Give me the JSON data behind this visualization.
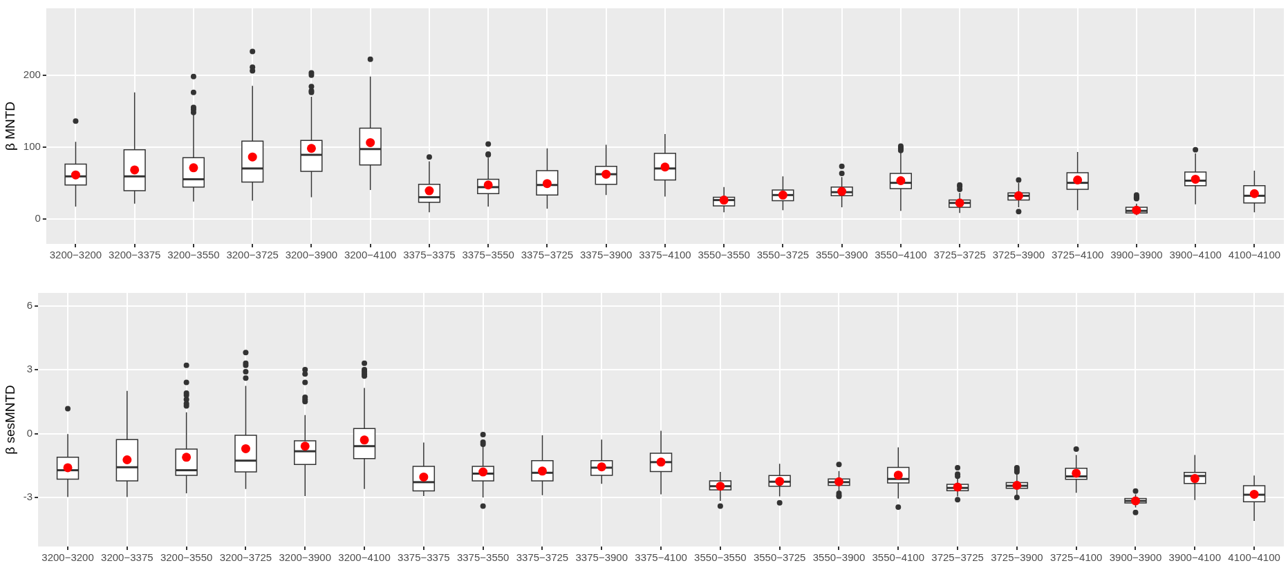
{
  "chart_data": [
    {
      "type": "box",
      "ylabel": "β MNTD",
      "categories": [
        "3200−3200",
        "3200−3375",
        "3200−3550",
        "3200−3725",
        "3200−3900",
        "3200−4100",
        "3375−3375",
        "3375−3550",
        "3375−3725",
        "3375−3900",
        "3375−4100",
        "3550−3550",
        "3550−3725",
        "3550−3900",
        "3550−4100",
        "3725−3725",
        "3725−3900",
        "3725−4100",
        "3900−3900",
        "3900−4100",
        "4100−4100"
      ],
      "ylim": [
        -35,
        293
      ],
      "yticks": [
        0,
        100,
        200
      ],
      "grid": true,
      "boxes": [
        {
          "low": 17,
          "q1": 47,
          "median": 59,
          "q3": 76,
          "high": 107,
          "mean": 61,
          "outliers": [
            136
          ]
        },
        {
          "low": 21,
          "q1": 39,
          "median": 59,
          "q3": 96,
          "high": 176,
          "mean": 68
        },
        {
          "low": 24,
          "q1": 44,
          "median": 55,
          "q3": 85,
          "high": 145,
          "mean": 71,
          "outliers": [
            148,
            152,
            155,
            176,
            198
          ]
        },
        {
          "low": 25,
          "q1": 51,
          "median": 70,
          "q3": 108,
          "high": 185,
          "mean": 86,
          "outliers": [
            206,
            211,
            233
          ]
        },
        {
          "low": 30,
          "q1": 66,
          "median": 89,
          "q3": 109,
          "high": 170,
          "mean": 98,
          "outliers": [
            176,
            178,
            184,
            200,
            203
          ]
        },
        {
          "low": 40,
          "q1": 75,
          "median": 97,
          "q3": 126,
          "high": 198,
          "mean": 106,
          "outliers": [
            222
          ]
        },
        {
          "low": 9,
          "q1": 23,
          "median": 30,
          "q3": 48,
          "high": 80,
          "mean": 39,
          "outliers": [
            86
          ]
        },
        {
          "low": 17,
          "q1": 35,
          "median": 44,
          "q3": 55,
          "high": 85,
          "mean": 47,
          "outliers": [
            89,
            90,
            104
          ]
        },
        {
          "low": 14,
          "q1": 33,
          "median": 47,
          "q3": 67,
          "high": 98,
          "mean": 49
        },
        {
          "low": 33,
          "q1": 48,
          "median": 62,
          "q3": 73,
          "high": 103,
          "mean": 62
        },
        {
          "low": 31,
          "q1": 54,
          "median": 70,
          "q3": 91,
          "high": 118,
          "mean": 72
        },
        {
          "low": 9,
          "q1": 18,
          "median": 26,
          "q3": 30,
          "high": 44,
          "mean": 26
        },
        {
          "low": 12,
          "q1": 25,
          "median": 33,
          "q3": 40,
          "high": 59,
          "mean": 33
        },
        {
          "low": 16,
          "q1": 32,
          "median": 37,
          "q3": 44,
          "high": 58,
          "mean": 38,
          "outliers": [
            63,
            73
          ]
        },
        {
          "low": 11,
          "q1": 42,
          "median": 50,
          "q3": 63,
          "high": 92,
          "mean": 53,
          "outliers": [
            95,
            97,
            99,
            101
          ]
        },
        {
          "low": 8,
          "q1": 16,
          "median": 22,
          "q3": 26,
          "high": 36,
          "mean": 22,
          "outliers": [
            41,
            45,
            47
          ]
        },
        {
          "low": 16,
          "q1": 26,
          "median": 32,
          "q3": 36,
          "high": 50,
          "mean": 32,
          "outliers": [
            10,
            54
          ]
        },
        {
          "low": 12,
          "q1": 41,
          "median": 50,
          "q3": 64,
          "high": 93,
          "mean": 54
        },
        {
          "low": 5,
          "q1": 8,
          "median": 11,
          "q3": 16,
          "high": 21,
          "mean": 12,
          "outliers": [
            28,
            29,
            30,
            31,
            33
          ]
        },
        {
          "low": 20,
          "q1": 46,
          "median": 53,
          "q3": 65,
          "high": 91,
          "mean": 55,
          "outliers": [
            96
          ]
        },
        {
          "low": 9,
          "q1": 22,
          "median": 32,
          "q3": 46,
          "high": 67,
          "mean": 35
        }
      ]
    },
    {
      "type": "box",
      "ylabel": "β sesMNTD",
      "categories": [
        "3200−3200",
        "3200−3375",
        "3200−3550",
        "3200−3725",
        "3200−3900",
        "3200−4100",
        "3375−3375",
        "3375−3550",
        "3375−3725",
        "3375−3900",
        "3375−4100",
        "3550−3550",
        "3550−3725",
        "3550−3900",
        "3550−4100",
        "3725−3725",
        "3725−3900",
        "3725−4100",
        "3900−3900",
        "3900−4100",
        "4100−4100"
      ],
      "ylim": [
        -5.3,
        6.6
      ],
      "yticks": [
        -3,
        0,
        3,
        6
      ],
      "grid": true,
      "boxes": [
        {
          "low": -2.97,
          "q1": -2.14,
          "median": -1.72,
          "q3": -1.11,
          "high": -0.02,
          "mean": -1.6,
          "outliers": [
            1.17
          ]
        },
        {
          "low": -2.97,
          "q1": -2.22,
          "median": -1.58,
          "q3": -0.28,
          "high": 2.0,
          "mean": -1.23
        },
        {
          "low": -2.8,
          "q1": -1.96,
          "median": -1.72,
          "q3": -0.73,
          "high": 1.0,
          "mean": -1.11,
          "outliers": [
            1.3,
            1.4,
            1.6,
            1.8,
            1.9,
            2.4,
            3.2
          ]
        },
        {
          "low": -2.6,
          "q1": -1.8,
          "median": -1.27,
          "q3": -0.08,
          "high": 2.24,
          "mean": -0.71,
          "outliers": [
            2.6,
            2.9,
            3.2,
            3.3,
            3.8
          ]
        },
        {
          "low": -2.93,
          "q1": -1.45,
          "median": -0.83,
          "q3": -0.34,
          "high": 0.87,
          "mean": -0.59,
          "outliers": [
            1.5,
            1.6,
            1.7,
            2.4,
            2.8,
            3.0
          ]
        },
        {
          "low": -2.6,
          "q1": -1.17,
          "median": -0.59,
          "q3": 0.24,
          "high": 2.14,
          "mean": -0.3,
          "outliers": [
            2.7,
            2.8,
            2.9,
            3.0,
            3.3
          ]
        },
        {
          "low": -2.93,
          "q1": -2.69,
          "median": -2.28,
          "q3": -1.54,
          "high": -0.42,
          "mean": -2.04
        },
        {
          "low": -3.0,
          "q1": -2.22,
          "median": -1.88,
          "q3": -1.54,
          "high": -0.6,
          "mean": -1.8,
          "outliers": [
            -0.05,
            -0.4,
            -0.5,
            -3.4
          ]
        },
        {
          "low": -2.89,
          "q1": -2.22,
          "median": -1.84,
          "q3": -1.27,
          "high": -0.08,
          "mean": -1.76
        },
        {
          "low": -2.36,
          "q1": -1.96,
          "median": -1.6,
          "q3": -1.27,
          "high": -0.28,
          "mean": -1.56
        },
        {
          "low": -2.85,
          "q1": -1.78,
          "median": -1.34,
          "q3": -0.92,
          "high": 0.13,
          "mean": -1.34
        },
        {
          "low": -3.16,
          "q1": -2.64,
          "median": -2.47,
          "q3": -2.22,
          "high": -1.8,
          "mean": -2.47,
          "outliers": [
            -3.4
          ]
        },
        {
          "low": -2.95,
          "q1": -2.47,
          "median": -2.26,
          "q3": -1.97,
          "high": -1.42,
          "mean": -2.24,
          "outliers": [
            -3.25
          ]
        },
        {
          "low": -2.7,
          "q1": -2.43,
          "median": -2.28,
          "q3": -2.13,
          "high": -1.76,
          "mean": -2.26,
          "outliers": [
            -1.45,
            -2.8,
            -2.9,
            -2.95
          ]
        },
        {
          "low": -3.05,
          "q1": -2.32,
          "median": -2.13,
          "q3": -1.59,
          "high": -0.65,
          "mean": -1.95,
          "outliers": [
            -3.45
          ]
        },
        {
          "low": -2.95,
          "q1": -2.68,
          "median": -2.55,
          "q3": -2.38,
          "high": -1.97,
          "mean": -2.51,
          "outliers": [
            -1.6,
            -1.9,
            -2.0,
            -3.1
          ]
        },
        {
          "low": -2.91,
          "q1": -2.57,
          "median": -2.45,
          "q3": -2.3,
          "high": -1.9,
          "mean": -2.43,
          "outliers": [
            -1.6,
            -1.7,
            -1.8,
            -3.0
          ]
        },
        {
          "low": -2.78,
          "q1": -2.15,
          "median": -2.01,
          "q3": -1.63,
          "high": -1.0,
          "mean": -1.86,
          "outliers": [
            -0.73
          ]
        },
        {
          "low": -3.47,
          "q1": -3.26,
          "median": -3.16,
          "q3": -3.05,
          "high": -2.85,
          "mean": -3.16,
          "outliers": [
            -2.7,
            -3.7
          ]
        },
        {
          "low": -3.12,
          "q1": -2.34,
          "median": -1.99,
          "q3": -1.82,
          "high": -1.0,
          "mean": -2.11
        },
        {
          "low": -4.1,
          "q1": -3.2,
          "median": -2.87,
          "q3": -2.45,
          "high": -1.97,
          "mean": -2.85
        }
      ]
    }
  ]
}
